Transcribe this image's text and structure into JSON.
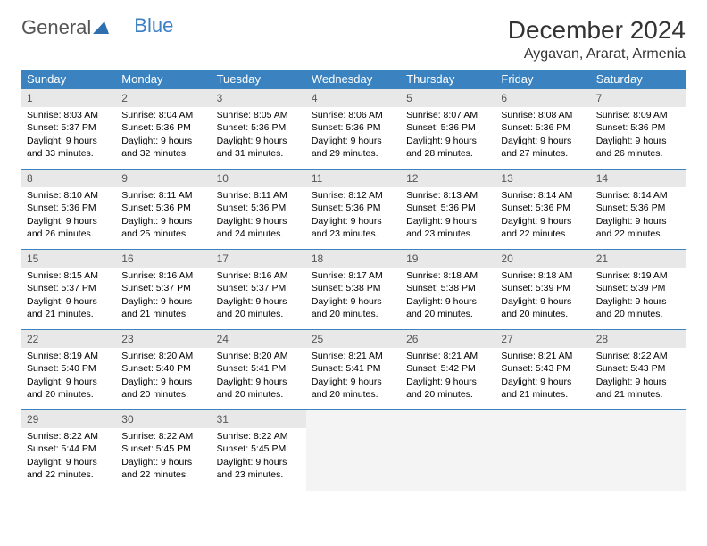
{
  "logo": {
    "textGray": "General",
    "textBlue": "Blue"
  },
  "header": {
    "monthTitle": "December 2024",
    "location": "Aygavan, Ararat, Armenia"
  },
  "colors": {
    "headerBlue": "#3b83c0",
    "dayNumBg": "#e8e8e8",
    "emptyBg": "#f4f4f4",
    "ruleBlue": "#3b83c0"
  },
  "weekdays": [
    "Sunday",
    "Monday",
    "Tuesday",
    "Wednesday",
    "Thursday",
    "Friday",
    "Saturday"
  ],
  "days": [
    {
      "n": "1",
      "sunrise": "8:03 AM",
      "sunset": "5:37 PM",
      "daylight": "9 hours and 33 minutes."
    },
    {
      "n": "2",
      "sunrise": "8:04 AM",
      "sunset": "5:36 PM",
      "daylight": "9 hours and 32 minutes."
    },
    {
      "n": "3",
      "sunrise": "8:05 AM",
      "sunset": "5:36 PM",
      "daylight": "9 hours and 31 minutes."
    },
    {
      "n": "4",
      "sunrise": "8:06 AM",
      "sunset": "5:36 PM",
      "daylight": "9 hours and 29 minutes."
    },
    {
      "n": "5",
      "sunrise": "8:07 AM",
      "sunset": "5:36 PM",
      "daylight": "9 hours and 28 minutes."
    },
    {
      "n": "6",
      "sunrise": "8:08 AM",
      "sunset": "5:36 PM",
      "daylight": "9 hours and 27 minutes."
    },
    {
      "n": "7",
      "sunrise": "8:09 AM",
      "sunset": "5:36 PM",
      "daylight": "9 hours and 26 minutes."
    },
    {
      "n": "8",
      "sunrise": "8:10 AM",
      "sunset": "5:36 PM",
      "daylight": "9 hours and 26 minutes."
    },
    {
      "n": "9",
      "sunrise": "8:11 AM",
      "sunset": "5:36 PM",
      "daylight": "9 hours and 25 minutes."
    },
    {
      "n": "10",
      "sunrise": "8:11 AM",
      "sunset": "5:36 PM",
      "daylight": "9 hours and 24 minutes."
    },
    {
      "n": "11",
      "sunrise": "8:12 AM",
      "sunset": "5:36 PM",
      "daylight": "9 hours and 23 minutes."
    },
    {
      "n": "12",
      "sunrise": "8:13 AM",
      "sunset": "5:36 PM",
      "daylight": "9 hours and 23 minutes."
    },
    {
      "n": "13",
      "sunrise": "8:14 AM",
      "sunset": "5:36 PM",
      "daylight": "9 hours and 22 minutes."
    },
    {
      "n": "14",
      "sunrise": "8:14 AM",
      "sunset": "5:36 PM",
      "daylight": "9 hours and 22 minutes."
    },
    {
      "n": "15",
      "sunrise": "8:15 AM",
      "sunset": "5:37 PM",
      "daylight": "9 hours and 21 minutes."
    },
    {
      "n": "16",
      "sunrise": "8:16 AM",
      "sunset": "5:37 PM",
      "daylight": "9 hours and 21 minutes."
    },
    {
      "n": "17",
      "sunrise": "8:16 AM",
      "sunset": "5:37 PM",
      "daylight": "9 hours and 20 minutes."
    },
    {
      "n": "18",
      "sunrise": "8:17 AM",
      "sunset": "5:38 PM",
      "daylight": "9 hours and 20 minutes."
    },
    {
      "n": "19",
      "sunrise": "8:18 AM",
      "sunset": "5:38 PM",
      "daylight": "9 hours and 20 minutes."
    },
    {
      "n": "20",
      "sunrise": "8:18 AM",
      "sunset": "5:39 PM",
      "daylight": "9 hours and 20 minutes."
    },
    {
      "n": "21",
      "sunrise": "8:19 AM",
      "sunset": "5:39 PM",
      "daylight": "9 hours and 20 minutes."
    },
    {
      "n": "22",
      "sunrise": "8:19 AM",
      "sunset": "5:40 PM",
      "daylight": "9 hours and 20 minutes."
    },
    {
      "n": "23",
      "sunrise": "8:20 AM",
      "sunset": "5:40 PM",
      "daylight": "9 hours and 20 minutes."
    },
    {
      "n": "24",
      "sunrise": "8:20 AM",
      "sunset": "5:41 PM",
      "daylight": "9 hours and 20 minutes."
    },
    {
      "n": "25",
      "sunrise": "8:21 AM",
      "sunset": "5:41 PM",
      "daylight": "9 hours and 20 minutes."
    },
    {
      "n": "26",
      "sunrise": "8:21 AM",
      "sunset": "5:42 PM",
      "daylight": "9 hours and 20 minutes."
    },
    {
      "n": "27",
      "sunrise": "8:21 AM",
      "sunset": "5:43 PM",
      "daylight": "9 hours and 21 minutes."
    },
    {
      "n": "28",
      "sunrise": "8:22 AM",
      "sunset": "5:43 PM",
      "daylight": "9 hours and 21 minutes."
    },
    {
      "n": "29",
      "sunrise": "8:22 AM",
      "sunset": "5:44 PM",
      "daylight": "9 hours and 22 minutes."
    },
    {
      "n": "30",
      "sunrise": "8:22 AM",
      "sunset": "5:45 PM",
      "daylight": "9 hours and 22 minutes."
    },
    {
      "n": "31",
      "sunrise": "8:22 AM",
      "sunset": "5:45 PM",
      "daylight": "9 hours and 23 minutes."
    }
  ],
  "labels": {
    "sunrisePrefix": "Sunrise: ",
    "sunsetPrefix": "Sunset: ",
    "daylightPrefix": "Daylight: "
  },
  "trailingEmpty": 4
}
